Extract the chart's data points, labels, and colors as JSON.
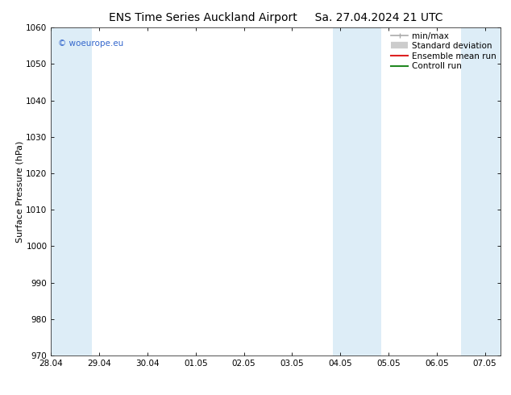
{
  "title_left": "ENS Time Series Auckland Airport",
  "title_right": "Sa. 27.04.2024 21 UTC",
  "ylabel": "Surface Pressure (hPa)",
  "ylim": [
    970,
    1060
  ],
  "yticks": [
    970,
    980,
    990,
    1000,
    1010,
    1020,
    1030,
    1040,
    1050,
    1060
  ],
  "xlim": [
    0,
    9.33
  ],
  "xtick_labels": [
    "28.04",
    "29.04",
    "30.04",
    "01.05",
    "02.05",
    "03.05",
    "04.05",
    "05.05",
    "06.05",
    "07.05"
  ],
  "xtick_positions": [
    0,
    1,
    2,
    3,
    4,
    5,
    6,
    7,
    8,
    9
  ],
  "shaded_bands": [
    {
      "x_start": -0.15,
      "x_end": 0.85
    },
    {
      "x_start": 5.85,
      "x_end": 6.85
    },
    {
      "x_start": 8.5,
      "x_end": 9.5
    }
  ],
  "shade_color": "#ddedf7",
  "background_color": "#ffffff",
  "watermark": "© woeurope.eu",
  "watermark_color": "#3366cc",
  "legend_entries": [
    "min/max",
    "Standard deviation",
    "Ensemble mean run",
    "Controll run"
  ],
  "legend_line_colors": [
    "#aaaaaa",
    "#cccccc",
    "#dd2222",
    "#228822"
  ],
  "title_fontsize": 10,
  "ylabel_fontsize": 8,
  "tick_fontsize": 7.5,
  "legend_fontsize": 7.5
}
